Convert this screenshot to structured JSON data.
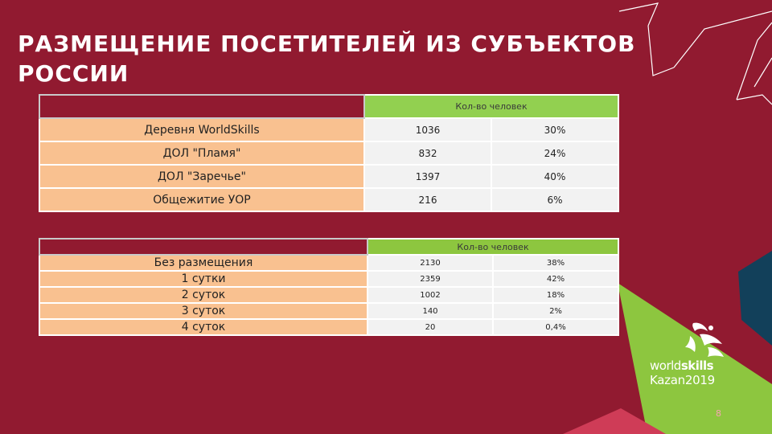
{
  "slide": {
    "title": "РАЗМЕЩЕНИЕ ПОСЕТИТЕЛЕЙ ИЗ СУБЪЕКТОВ РОССИИ",
    "page_number": "8",
    "colors": {
      "background": "#911a30",
      "header_green": "#92d050",
      "name_cell": "#f9c190",
      "value_cell": "#f2f2f2",
      "accent_lime": "#8dc63f",
      "accent_navy": "#12405a"
    }
  },
  "table1": {
    "header_label": "Кол-во человек",
    "rows": [
      {
        "name": "Деревня WorldSkills",
        "count": "1036",
        "percent": "30%"
      },
      {
        "name": "ДОЛ \"Пламя\"",
        "count": "832",
        "percent": "24%"
      },
      {
        "name": "ДОЛ \"Заречье\"",
        "count": "1397",
        "percent": "40%"
      },
      {
        "name": "Общежитие УОР",
        "count": "216",
        "percent": "6%"
      }
    ]
  },
  "table2": {
    "header_label": "Кол-во человек",
    "rows": [
      {
        "name": "Без размещения",
        "count": "2130",
        "percent": "38%"
      },
      {
        "name": "1 сутки",
        "count": "2359",
        "percent": "42%"
      },
      {
        "name": "2 суток",
        "count": "1002",
        "percent": "18%"
      },
      {
        "name": "3 суток",
        "count": "140",
        "percent": "2%"
      },
      {
        "name": "4 суток",
        "count": "20",
        "percent": "0,4%"
      }
    ]
  },
  "logo": {
    "world": "world",
    "skills": "skills",
    "kazan": "Kazan2019"
  }
}
